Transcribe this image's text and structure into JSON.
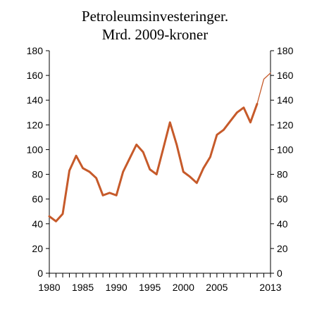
{
  "chart_data": {
    "type": "line",
    "title_lines": [
      "Petroleumsinvesteringer.",
      "Mrd. 2009-kroner"
    ],
    "ylim": [
      0,
      180
    ],
    "y_ticks": [
      0,
      20,
      40,
      60,
      80,
      100,
      120,
      140,
      160,
      180
    ],
    "xlim": [
      1980,
      2013
    ],
    "x_tick_labels": [
      {
        "year": 1980,
        "label": "1980"
      },
      {
        "year": 1985,
        "label": "1985"
      },
      {
        "year": 1990,
        "label": "1990"
      },
      {
        "year": 1995,
        "label": "1995"
      },
      {
        "year": 2000,
        "label": "2000"
      },
      {
        "year": 2005,
        "label": "2005"
      },
      {
        "year": 2013,
        "label": "2013"
      }
    ],
    "grid": false,
    "colors": {
      "series": "#C65A2A"
    },
    "series": [
      {
        "style": "thick",
        "x": [
          1980,
          1981,
          1982,
          1983,
          1984,
          1985,
          1986,
          1987,
          1988,
          1989,
          1990,
          1991,
          1992,
          1993,
          1994,
          1995,
          1996,
          1997,
          1998,
          1999,
          2000,
          2001,
          2002,
          2003,
          2004,
          2005,
          2006,
          2007,
          2008,
          2009,
          2010,
          2011
        ],
        "values": [
          46,
          42,
          48,
          83,
          95,
          85,
          82,
          77,
          63,
          65,
          63,
          82,
          93,
          104,
          98,
          84,
          80,
          101,
          122,
          104,
          82,
          78,
          73,
          85,
          94,
          112,
          116,
          123,
          130,
          134,
          122,
          137
        ]
      },
      {
        "style": "thin",
        "x": [
          2011,
          2012,
          2013
        ],
        "values": [
          137,
          157,
          162
        ]
      }
    ]
  }
}
